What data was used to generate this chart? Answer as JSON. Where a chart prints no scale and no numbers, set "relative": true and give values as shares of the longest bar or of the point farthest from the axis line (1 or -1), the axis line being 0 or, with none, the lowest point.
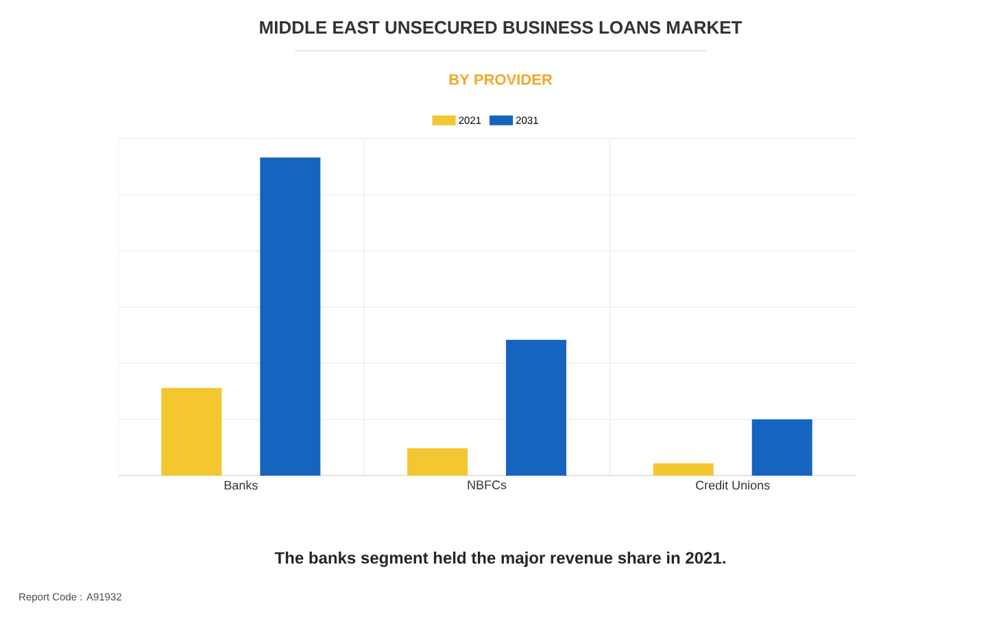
{
  "chart_data": {
    "type": "bar",
    "title": "MIDDLE EAST UNSECURED BUSINESS LOANS MARKET",
    "subtitle": "BY PROVIDER",
    "categories": [
      "Banks",
      "NBFCs",
      "Credit Unions"
    ],
    "series": [
      {
        "name": "2021",
        "color": "#f4c630",
        "values": [
          0.276,
          0.086,
          0.039
        ]
      },
      {
        "name": "2031",
        "color": "#1565c0",
        "values": [
          1,
          0.427,
          0.177
        ]
      }
    ],
    "relative": true,
    "grid": true,
    "legend": "top",
    "annotations": [
      "The banks segment held the major revenue share in 2021.",
      "Report Code : A91932"
    ]
  }
}
